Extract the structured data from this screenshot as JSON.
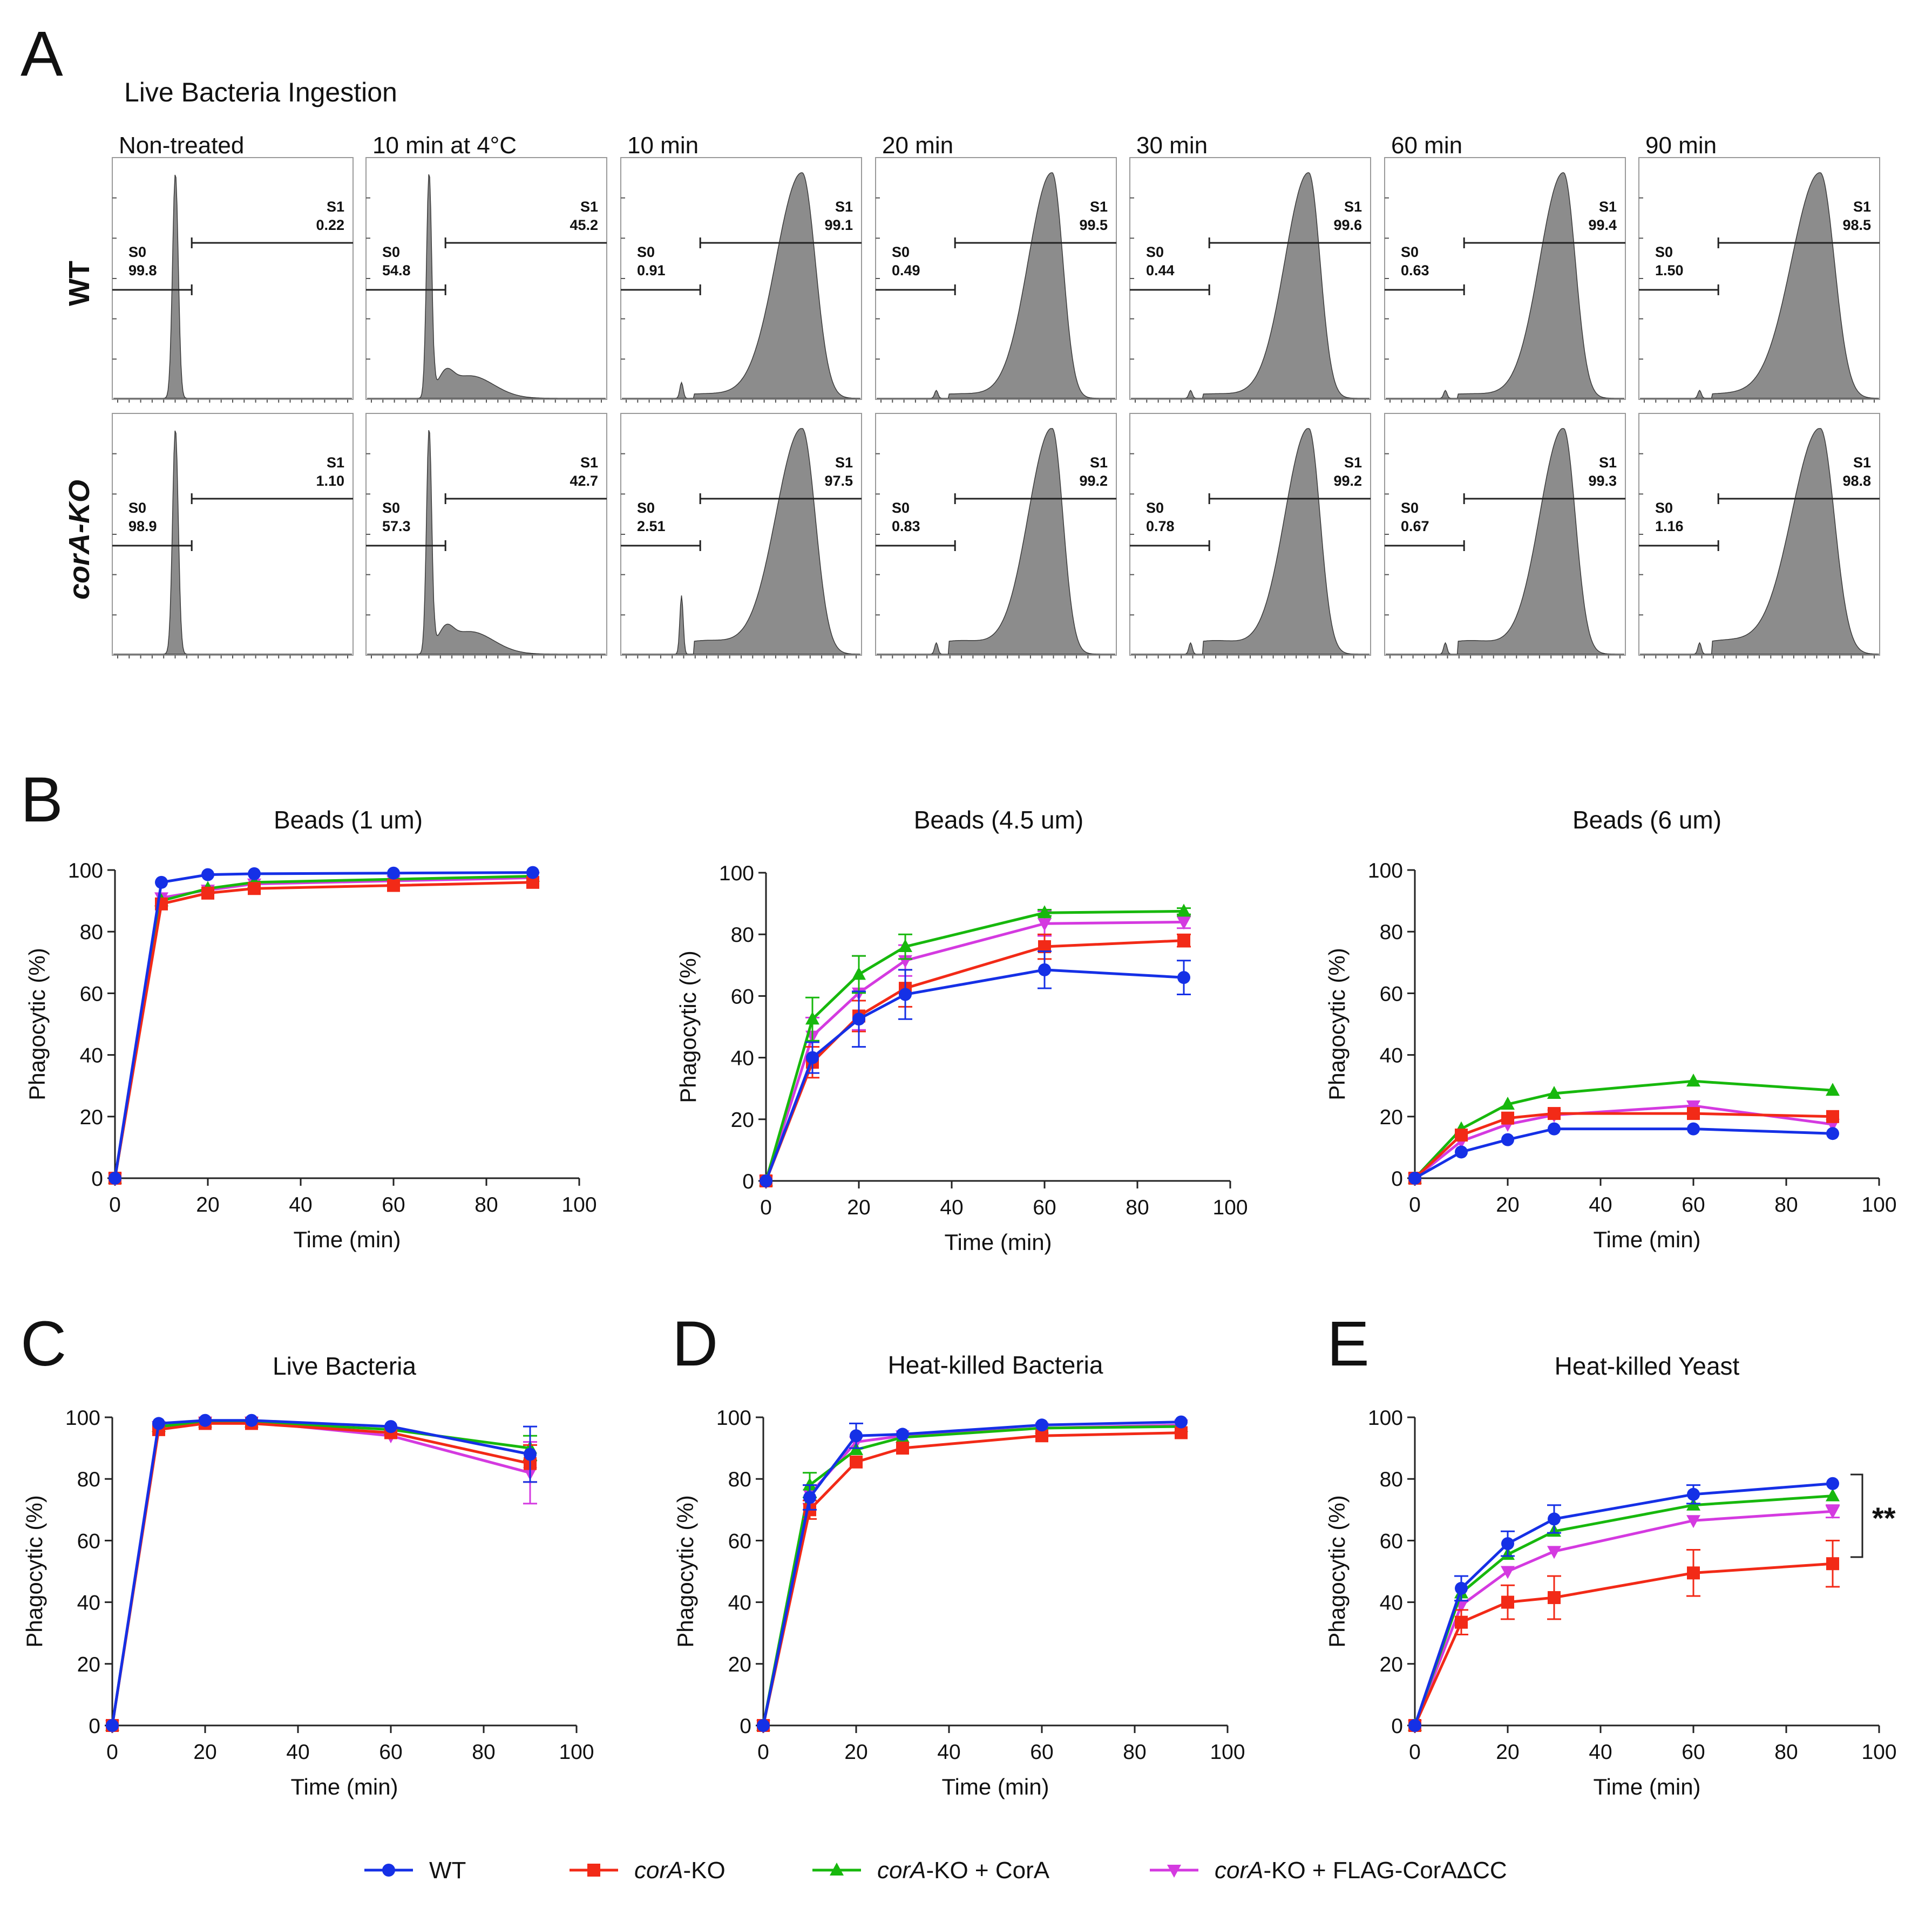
{
  "figure": {
    "panel_labels": [
      "A",
      "B",
      "C",
      "D",
      "E"
    ],
    "panel_a_title": "Live Bacteria Ingestion",
    "row_labels": [
      "WT",
      "corA-KO"
    ],
    "gate_names": [
      "S0",
      "S1"
    ],
    "y_axis_label": "Phagocytic (%)",
    "x_axis_label": "Time (min)",
    "significance": "**"
  },
  "legend": [
    {
      "italic": "",
      "text": "WT",
      "color": "#1530e6",
      "marker": "circle"
    },
    {
      "italic": "corA",
      "text": "-KO",
      "color": "#f22a17",
      "marker": "square"
    },
    {
      "italic": "corA",
      "text": "-KO + CorA",
      "color": "#17b80d",
      "marker": "triangle-up"
    },
    {
      "italic": "corA",
      "text": "-KO + FLAG-CorAΔCC",
      "color": "#d43ae0",
      "marker": "triangle-down"
    }
  ],
  "histograms": {
    "columns": [
      "Non-treated",
      "10 min at 4°C",
      "10 min",
      "20 min",
      "30 min",
      "60 min",
      "90 min"
    ],
    "rows": [
      {
        "label": "WT",
        "s0": [
          "99.8",
          "54.8",
          "0.91",
          "0.49",
          "0.44",
          "0.63",
          "1.50"
        ],
        "s1": [
          "0.22",
          "45.2",
          "99.1",
          "99.5",
          "99.6",
          "99.4",
          "98.5"
        ]
      },
      {
        "label": "corA-KO",
        "s0": [
          "98.9",
          "57.3",
          "2.51",
          "0.83",
          "0.78",
          "0.67",
          "1.16"
        ],
        "s1": [
          "1.10",
          "42.7",
          "97.5",
          "99.2",
          "99.2",
          "99.3",
          "98.8"
        ]
      }
    ]
  },
  "chart_data": [
    {
      "type": "histogram",
      "title": "Live Bacteria Ingestion",
      "columns": [
        "Non-treated",
        "10 min at 4°C",
        "10 min",
        "20 min",
        "30 min",
        "60 min",
        "90 min"
      ],
      "rows": [
        "WT",
        "corA-KO"
      ],
      "gates": {
        "S0": [
          [
            "99.8",
            "54.8",
            "0.91",
            "0.49",
            "0.44",
            "0.63",
            "1.50"
          ],
          [
            "98.9",
            "57.3",
            "2.51",
            "0.83",
            "0.78",
            "0.67",
            "1.16"
          ]
        ],
        "S1": [
          [
            "0.22",
            "45.2",
            "99.1",
            "99.5",
            "99.6",
            "99.4",
            "98.5"
          ],
          [
            "1.10",
            "42.7",
            "97.5",
            "99.2",
            "99.2",
            "99.3",
            "98.8"
          ]
        ]
      }
    },
    {
      "type": "line",
      "panel": "B",
      "title": "Beads (1 um)",
      "xlabel": "Time (min)",
      "ylabel": "Phagocytic (%)",
      "xlim": [
        0,
        100
      ],
      "ylim": [
        0,
        100
      ],
      "x": [
        0,
        10,
        20,
        30,
        60,
        90
      ],
      "series": [
        {
          "name": "WT",
          "values": [
            0,
            96,
            98.5,
            98.8,
            99,
            99.2
          ],
          "err": [
            0,
            0,
            0,
            0,
            0,
            0
          ]
        },
        {
          "name": "corA-KO",
          "values": [
            0,
            89,
            92.5,
            94,
            95,
            96
          ],
          "err": [
            0,
            0,
            0,
            0,
            0,
            0
          ]
        },
        {
          "name": "corA-KO + CorA",
          "values": [
            0,
            90,
            94,
            96,
            97,
            98
          ],
          "err": [
            0,
            0,
            0,
            0,
            0,
            0
          ]
        },
        {
          "name": "corA-KO + FLAG-CorAΔCC",
          "values": [
            0,
            91,
            93.5,
            95.5,
            96.5,
            97.5
          ],
          "err": [
            0,
            0,
            0,
            0,
            0,
            0
          ]
        }
      ]
    },
    {
      "type": "line",
      "panel": "",
      "title": "Beads (4.5 um)",
      "xlabel": "Time (min)",
      "ylabel": "Phagocytic (%)",
      "xlim": [
        0,
        100
      ],
      "ylim": [
        0,
        100
      ],
      "x": [
        0,
        10,
        20,
        30,
        60,
        90
      ],
      "series": [
        {
          "name": "WT",
          "values": [
            0,
            40,
            52.5,
            60.5,
            68.5,
            66
          ],
          "err": [
            0,
            5,
            9,
            8,
            6,
            5.5
          ]
        },
        {
          "name": "corA-KO",
          "values": [
            0,
            38.5,
            53.5,
            62.5,
            76,
            78
          ],
          "err": [
            0,
            5,
            5,
            6,
            4,
            2
          ]
        },
        {
          "name": "corA-KO + CorA",
          "values": [
            0,
            52.5,
            67,
            76,
            87,
            87.5
          ],
          "err": [
            0,
            7,
            6,
            4,
            1,
            1
          ]
        },
        {
          "name": "corA-KO + FLAG-CorAΔCC",
          "values": [
            0,
            47,
            61,
            71.5,
            83.5,
            84
          ],
          "err": [
            0,
            6,
            12,
            5,
            4,
            2
          ]
        }
      ]
    },
    {
      "type": "line",
      "panel": "",
      "title": "Beads (6 um)",
      "xlabel": "Time (min)",
      "ylabel": "Phagocytic (%)",
      "xlim": [
        0,
        100
      ],
      "ylim": [
        0,
        100
      ],
      "x": [
        0,
        10,
        20,
        30,
        60,
        90
      ],
      "series": [
        {
          "name": "WT",
          "values": [
            0,
            8.5,
            12.5,
            16,
            16,
            14.5
          ],
          "err": [
            0,
            0,
            0,
            0,
            0,
            0
          ]
        },
        {
          "name": "corA-KO",
          "values": [
            0,
            14,
            19.5,
            21,
            21,
            20
          ],
          "err": [
            0,
            0,
            0,
            0,
            0,
            0
          ]
        },
        {
          "name": "corA-KO + CorA",
          "values": [
            0,
            16,
            24,
            27.5,
            31.5,
            28.5
          ],
          "err": [
            0,
            0,
            0,
            0,
            0,
            0
          ]
        },
        {
          "name": "corA-KO + FLAG-CorAΔCC",
          "values": [
            0,
            12,
            17.5,
            20.5,
            23.5,
            17.5
          ],
          "err": [
            0,
            0,
            0,
            0,
            0,
            0
          ]
        }
      ]
    },
    {
      "type": "line",
      "panel": "C",
      "title": "Live Bacteria",
      "xlabel": "Time (min)",
      "ylabel": "Phagocytic (%)",
      "xlim": [
        0,
        100
      ],
      "ylim": [
        0,
        100
      ],
      "x": [
        0,
        10,
        20,
        30,
        60,
        90
      ],
      "series": [
        {
          "name": "WT",
          "values": [
            0,
            98,
            99,
            99,
            97,
            88
          ],
          "err": [
            0,
            0,
            0,
            0,
            0,
            9
          ]
        },
        {
          "name": "corA-KO",
          "values": [
            0,
            96,
            98,
            98,
            95,
            85
          ],
          "err": [
            0,
            0,
            0,
            0,
            0,
            6
          ]
        },
        {
          "name": "corA-KO + CorA",
          "values": [
            0,
            97,
            98.5,
            98.5,
            96,
            90
          ],
          "err": [
            0,
            0,
            0,
            0,
            0,
            4
          ]
        },
        {
          "name": "corA-KO + FLAG-CorAΔCC",
          "values": [
            0,
            97,
            98.5,
            98.5,
            94,
            82
          ],
          "err": [
            0,
            0,
            0,
            0,
            0,
            10
          ]
        }
      ]
    },
    {
      "type": "line",
      "panel": "D",
      "title": "Heat-killed Bacteria",
      "xlabel": "Time (min)",
      "ylabel": "Phagocytic (%)",
      "xlim": [
        0,
        100
      ],
      "ylim": [
        0,
        100
      ],
      "x": [
        0,
        10,
        20,
        30,
        60,
        90
      ],
      "series": [
        {
          "name": "WT",
          "values": [
            0,
            74,
            94,
            94.5,
            97.5,
            98.5
          ],
          "err": [
            0,
            4,
            4,
            0,
            0,
            0
          ]
        },
        {
          "name": "corA-KO",
          "values": [
            0,
            70,
            85.5,
            90,
            94,
            95
          ],
          "err": [
            0,
            3,
            0,
            0,
            0,
            0
          ]
        },
        {
          "name": "corA-KO + CorA",
          "values": [
            0,
            78,
            89.5,
            93.5,
            96.5,
            97
          ],
          "err": [
            0,
            4,
            0,
            0,
            0,
            0
          ]
        },
        {
          "name": "corA-KO + FLAG-CorAΔCC",
          "values": [
            0,
            75,
            92,
            94,
            96.5,
            97.5
          ],
          "err": [
            0,
            3,
            0,
            0,
            0,
            0
          ]
        }
      ]
    },
    {
      "type": "line",
      "panel": "E",
      "title": "Heat-killed Yeast",
      "xlabel": "Time (min)",
      "ylabel": "Phagocytic (%)",
      "xlim": [
        0,
        100
      ],
      "ylim": [
        0,
        100
      ],
      "x": [
        0,
        10,
        20,
        30,
        60,
        90
      ],
      "series": [
        {
          "name": "WT",
          "values": [
            0,
            44.5,
            59,
            67,
            75,
            78.5
          ],
          "err": [
            0,
            4,
            4,
            4.5,
            3,
            0
          ]
        },
        {
          "name": "corA-KO",
          "values": [
            0,
            33.5,
            40,
            41.5,
            49.5,
            52.5
          ],
          "err": [
            0,
            4,
            5.5,
            7,
            7.5,
            7.5
          ]
        },
        {
          "name": "corA-KO + CorA",
          "values": [
            0,
            43,
            55.5,
            63,
            71.5,
            74.5
          ],
          "err": [
            0,
            0,
            0,
            0,
            0,
            0
          ]
        },
        {
          "name": "corA-KO + FLAG-CorAΔCC",
          "values": [
            0,
            39,
            50,
            56.5,
            66.5,
            69.5
          ],
          "err": [
            0,
            0,
            0,
            0,
            0,
            2
          ]
        }
      ],
      "annotation": "**"
    }
  ]
}
